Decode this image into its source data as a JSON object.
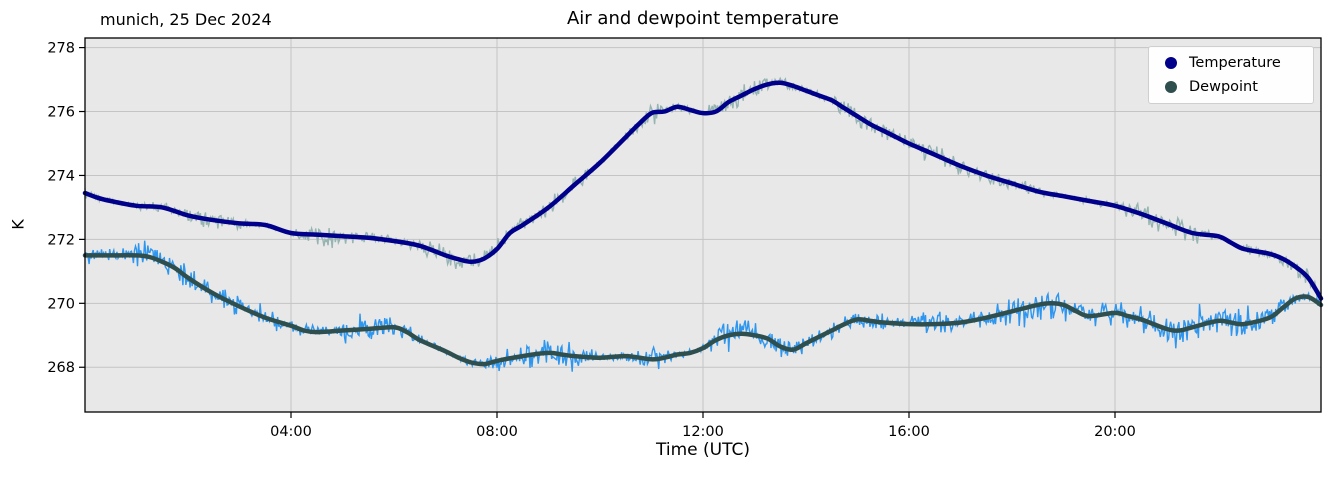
{
  "figure": {
    "title": "Air and dewpoint temperature",
    "annotation": "munich, 25 Dec 2024",
    "xlabel": "Time (UTC)",
    "ylabel": "K"
  },
  "chart_data": {
    "type": "line",
    "title": "Air and dewpoint temperature",
    "annotation": "munich, 25 Dec 2024",
    "xlabel": "Time (UTC)",
    "ylabel": "K",
    "xlim": [
      0,
      24
    ],
    "ylim": [
      266.6,
      278.3
    ],
    "x_ticks": [
      {
        "value": 4,
        "label": "04:00"
      },
      {
        "value": 8,
        "label": "08:00"
      },
      {
        "value": 12,
        "label": "12:00"
      },
      {
        "value": 16,
        "label": "16:00"
      },
      {
        "value": 20,
        "label": "20:00"
      }
    ],
    "y_ticks": [
      268,
      270,
      272,
      274,
      276,
      278
    ],
    "grid": true,
    "plot_background": "#e8e8e8",
    "grid_color": "#c4c4c4",
    "frame_color": "#000000",
    "legend_position": "upper right",
    "legend": {
      "items": [
        {
          "label": "Temperature"
        },
        {
          "label": "Dewpoint"
        }
      ]
    },
    "series": [
      {
        "name": "Temperature",
        "color": "#00008b",
        "raw_color": "#96b4b1",
        "noise": 0.09,
        "x": [
          0,
          0.25,
          0.5,
          1,
          1.5,
          2,
          2.5,
          3,
          3.5,
          4,
          4.5,
          5,
          5.5,
          6,
          6.5,
          7,
          7.25,
          7.5,
          7.75,
          8,
          8.25,
          8.5,
          9,
          9.5,
          10,
          10.5,
          10.75,
          11,
          11.25,
          11.5,
          11.75,
          12,
          12.25,
          12.5,
          12.75,
          13,
          13.25,
          13.5,
          13.75,
          14,
          14.25,
          14.5,
          14.75,
          15,
          15.25,
          15.5,
          15.75,
          16,
          16.5,
          17,
          17.5,
          18,
          18.5,
          19,
          19.5,
          20,
          20.5,
          21,
          21.5,
          22,
          22.25,
          22.5,
          23,
          23.25,
          23.5,
          23.75,
          24
        ],
        "y": [
          273.45,
          273.3,
          273.2,
          273.05,
          273.0,
          272.75,
          272.6,
          272.5,
          272.45,
          272.2,
          272.15,
          272.1,
          272.05,
          271.95,
          271.8,
          271.5,
          271.38,
          271.3,
          271.4,
          271.7,
          272.2,
          272.45,
          273.0,
          273.7,
          274.4,
          275.2,
          275.6,
          275.95,
          276.0,
          276.15,
          276.05,
          275.95,
          276.0,
          276.3,
          276.5,
          276.7,
          276.85,
          276.9,
          276.8,
          276.65,
          276.5,
          276.35,
          276.1,
          275.85,
          275.6,
          275.4,
          275.2,
          275.0,
          274.65,
          274.3,
          274.0,
          273.75,
          273.5,
          273.35,
          273.2,
          273.05,
          272.8,
          272.5,
          272.2,
          272.1,
          271.9,
          271.7,
          271.55,
          271.4,
          271.15,
          270.8,
          270.15
        ]
      },
      {
        "name": "Dewpoint",
        "color": "#2f4f4f",
        "raw_color": "#2e96ef",
        "noise": 0.14,
        "x": [
          0,
          0.5,
          1,
          1.25,
          1.5,
          1.75,
          2,
          2.5,
          3,
          3.5,
          4,
          4.25,
          4.5,
          5,
          5.5,
          6,
          6.25,
          6.5,
          7,
          7.25,
          7.5,
          7.75,
          8,
          8.5,
          9,
          9.25,
          9.5,
          10,
          10.5,
          11,
          11.25,
          11.5,
          11.75,
          12,
          12.25,
          12.5,
          12.75,
          13,
          13.25,
          13.5,
          13.75,
          14,
          14.25,
          14.5,
          14.75,
          15,
          15.25,
          15.5,
          16,
          16.5,
          17,
          17.5,
          18,
          18.5,
          18.75,
          19,
          19.25,
          19.5,
          20,
          20.25,
          20.5,
          21,
          21.25,
          21.5,
          22,
          22.25,
          22.5,
          23,
          23.25,
          23.5,
          23.75,
          24
        ],
        "y": [
          271.5,
          271.5,
          271.5,
          271.45,
          271.3,
          271.1,
          270.8,
          270.3,
          269.9,
          269.55,
          269.3,
          269.15,
          269.1,
          269.15,
          269.2,
          269.25,
          269.1,
          268.85,
          268.5,
          268.3,
          268.15,
          268.1,
          268.2,
          268.35,
          268.45,
          268.4,
          268.35,
          268.3,
          268.35,
          268.25,
          268.3,
          268.4,
          268.45,
          268.6,
          268.85,
          269.0,
          269.05,
          269.0,
          268.9,
          268.65,
          268.55,
          268.75,
          268.95,
          269.15,
          269.35,
          269.5,
          269.45,
          269.4,
          269.35,
          269.35,
          269.4,
          269.55,
          269.75,
          269.95,
          270.0,
          269.95,
          269.75,
          269.6,
          269.7,
          269.6,
          269.5,
          269.2,
          269.15,
          269.25,
          269.45,
          269.4,
          269.35,
          269.55,
          269.85,
          270.15,
          270.2,
          269.95
        ]
      }
    ]
  }
}
